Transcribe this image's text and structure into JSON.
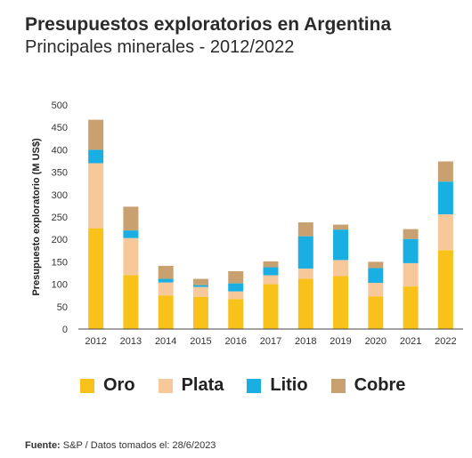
{
  "chart_data": {
    "type": "bar",
    "stacked": true,
    "title": "Presupuestos exploratorios en Argentina",
    "subtitle": "Principales minerales - 2012/2022",
    "ylabel": "Presupuesto exploratorio (M US$)",
    "xlabel": "",
    "ylim": [
      0,
      500
    ],
    "yticks": [
      0,
      50,
      100,
      150,
      200,
      250,
      300,
      350,
      400,
      450,
      500
    ],
    "categories": [
      "2012",
      "2013",
      "2014",
      "2015",
      "2016",
      "2017",
      "2018",
      "2019",
      "2020",
      "2021",
      "2022"
    ],
    "series": [
      {
        "name": "Oro",
        "color": "#F9C21A",
        "values": [
          225,
          120,
          75,
          72,
          67,
          100,
          112,
          118,
          73,
          95,
          176
        ]
      },
      {
        "name": "Plata",
        "color": "#F7C99A",
        "values": [
          145,
          83,
          29,
          22,
          17,
          20,
          23,
          36,
          30,
          52,
          80
        ]
      },
      {
        "name": "Litio",
        "color": "#1AAFE3",
        "values": [
          30,
          17,
          8,
          4,
          18,
          18,
          72,
          68,
          33,
          54,
          73
        ]
      },
      {
        "name": "Cobre",
        "color": "#C9A170",
        "values": [
          67,
          53,
          29,
          14,
          27,
          13,
          31,
          11,
          14,
          22,
          45
        ]
      }
    ],
    "legend_position": "bottom",
    "grid": false
  },
  "source": {
    "label": "Fuente:",
    "text": "S&P / Datos tomados el: 28/6/2023"
  }
}
